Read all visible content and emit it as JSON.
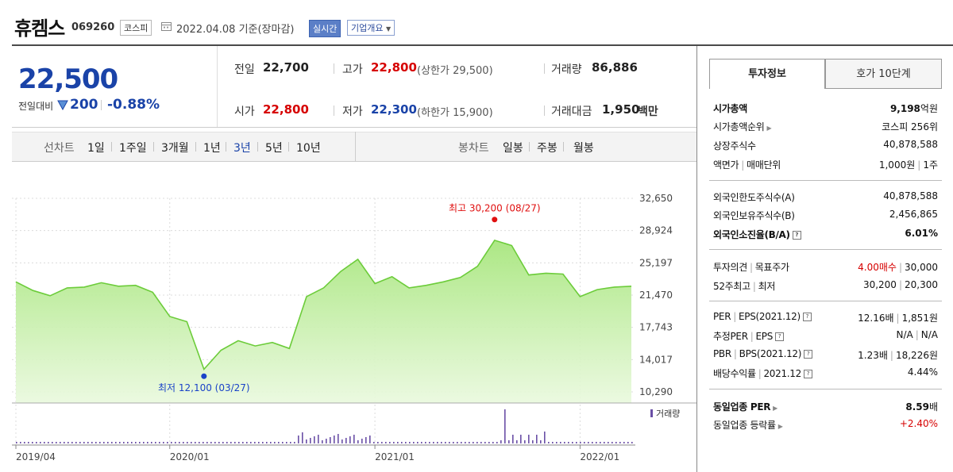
{
  "header": {
    "name": "휴켐스",
    "code": "069260",
    "market": "코스피",
    "date": "2022.04.08 기준(장마감)",
    "realtime_label": "실시간",
    "company_label": "기업개요"
  },
  "price": {
    "current": "22,500",
    "change_label": "전일대비",
    "change": "200",
    "change_pct": "-0.88%"
  },
  "quote": {
    "prev_label": "전일",
    "prev": "22,700",
    "high_label": "고가",
    "high": "22,800",
    "high_limit": "(상한가 29,500)",
    "volume_label": "거래량",
    "volume": "86,886",
    "open_label": "시가",
    "open": "22,800",
    "low_label": "저가",
    "low": "22,300",
    "low_limit": "(하한가 15,900)",
    "amount_label": "거래대금",
    "amount": "1,950",
    "amount_unit": "백만"
  },
  "toolbar": {
    "line_label": "선차트",
    "periods": [
      "1일",
      "1주일",
      "3개월",
      "1년",
      "3년",
      "5년",
      "10년"
    ],
    "active_period": "3년",
    "candle_label": "봉차트",
    "candles": [
      "일봉",
      "주봉",
      "월봉"
    ]
  },
  "chart_data": {
    "type": "area",
    "x_start": "2019-04",
    "x_end": "2022-04",
    "x_ticks": [
      {
        "label": "2019/04",
        "date": "2019-04"
      },
      {
        "label": "2020/01",
        "date": "2020-01"
      },
      {
        "label": "2021/01",
        "date": "2021-01"
      },
      {
        "label": "2022/01",
        "date": "2022-01"
      }
    ],
    "y_ticks": [
      32650,
      28924,
      25197,
      21470,
      17743,
      14017,
      10290
    ],
    "y_tick_labels": [
      "32,650",
      "28,924",
      "25,197",
      "21,470",
      "17,743",
      "14,017",
      "10,290"
    ],
    "ylim": [
      10290,
      32650
    ],
    "color": "#64c832",
    "series": [
      {
        "values": [
          [
            "2019-04",
            23000
          ],
          [
            "2019-05",
            22000
          ],
          [
            "2019-06",
            21400
          ],
          [
            "2019-07",
            22300
          ],
          [
            "2019-08",
            22400
          ],
          [
            "2019-09",
            22900
          ],
          [
            "2019-10",
            22500
          ],
          [
            "2019-11",
            22600
          ],
          [
            "2019-12",
            21800
          ],
          [
            "2020-01",
            19000
          ],
          [
            "2020-02",
            18400
          ],
          [
            "2020-03",
            12900
          ],
          [
            "2020-04",
            15100
          ],
          [
            "2020-05",
            16200
          ],
          [
            "2020-06",
            15600
          ],
          [
            "2020-07",
            16000
          ],
          [
            "2020-08",
            15300
          ],
          [
            "2020-09",
            21300
          ],
          [
            "2020-10",
            22300
          ],
          [
            "2020-11",
            24200
          ],
          [
            "2020-12",
            25600
          ],
          [
            "2021-01",
            22800
          ],
          [
            "2021-02",
            23600
          ],
          [
            "2021-03",
            22300
          ],
          [
            "2021-04",
            22600
          ],
          [
            "2021-05",
            23000
          ],
          [
            "2021-06",
            23500
          ],
          [
            "2021-07",
            24800
          ],
          [
            "2021-08",
            27800
          ],
          [
            "2021-09",
            27200
          ],
          [
            "2021-10",
            23800
          ],
          [
            "2021-11",
            24000
          ],
          [
            "2021-12",
            23900
          ],
          [
            "2022-01",
            21300
          ],
          [
            "2022-02",
            22100
          ],
          [
            "2022-03",
            22400
          ],
          [
            "2022-04",
            22500
          ]
        ]
      }
    ],
    "max_label": "최고 30,200 (08/27)",
    "max_point": [
      "2021-08",
      30200
    ],
    "min_label": "최저 12,100 (03/27)",
    "min_point": [
      "2020-03",
      12100
    ],
    "volume_legend": "거래량"
  },
  "invest": {
    "tab_active": "투자정보",
    "tab_inactive": "호가 10단계",
    "market_cap_label": "시가총액",
    "market_cap": "9,198",
    "market_cap_unit": "억원",
    "rank_label": "시가총액순위",
    "rank": "코스피 256위",
    "shares_label": "상장주식수",
    "shares": "40,878,588",
    "par_label": "액면가",
    "trade_unit_label": "매매단위",
    "par": "1,000원",
    "trade_unit": "1주",
    "foreign_limit_label": "외국인한도주식수(A)",
    "foreign_limit": "40,878,588",
    "foreign_hold_label": "외국인보유주식수(B)",
    "foreign_hold": "2,456,865",
    "foreign_rate_label": "외국인소진율(B/A)",
    "foreign_rate": "6.01%",
    "opinion_label": "투자의견",
    "target_label": "목표주가",
    "opinion": "4.00매수",
    "target": "30,000",
    "week52_label": "52주최고",
    "week52_low_label": "최저",
    "week52_high": "30,200",
    "week52_low": "20,300",
    "per_label": "PER",
    "eps_label": "EPS(2021.12)",
    "per": "12.16배",
    "eps": "1,851원",
    "est_per_label": "추정PER",
    "est_eps_label": "EPS",
    "est_per": "N/A",
    "est_eps": "N/A",
    "pbr_label": "PBR",
    "bps_label": "BPS(2021.12)",
    "pbr": "1.23배",
    "bps": "18,226원",
    "dividend_label": "배당수익률",
    "dividend_date": "2021.12",
    "dividend": "4.44%",
    "sector_per_label": "동일업종 PER",
    "sector_per": "8.59",
    "sector_per_unit": "배",
    "sector_rate_label": "동일업종 등락률",
    "sector_rate": "+2.40%"
  }
}
